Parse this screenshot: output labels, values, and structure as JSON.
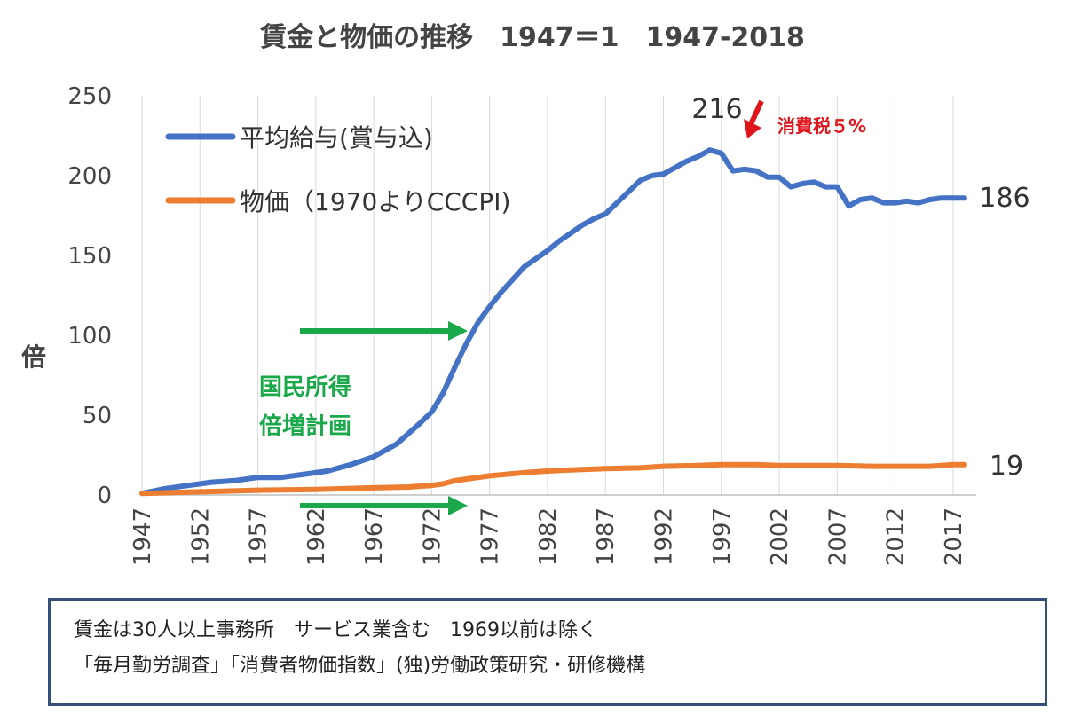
{
  "chart_data": {
    "type": "line",
    "title": "賃金と物価の推移　1947＝1　1947-2018",
    "ylabel": "倍",
    "xlabel": "",
    "ylim": [
      0,
      250
    ],
    "yticks": [
      0,
      50,
      100,
      150,
      200,
      250
    ],
    "xlim": [
      1947,
      2019
    ],
    "xticks": [
      "1947",
      "1952",
      "1957",
      "1962",
      "1967",
      "1972",
      "1977",
      "1982",
      "1987",
      "1992",
      "1997",
      "2002",
      "2007",
      "2012",
      "2017"
    ],
    "grid": "vertical",
    "legend": "top-left",
    "series": [
      {
        "name": "平均給与(賞与込)",
        "color": "#4472c4",
        "x": [
          1947,
          1949,
          1951,
          1953,
          1955,
          1957,
          1959,
          1961,
          1963,
          1965,
          1967,
          1969,
          1971,
          1972,
          1973,
          1974,
          1975,
          1976,
          1977,
          1978,
          1979,
          1980,
          1981,
          1982,
          1983,
          1984,
          1985,
          1986,
          1987,
          1988,
          1989,
          1990,
          1991,
          1992,
          1993,
          1994,
          1995,
          1996,
          1997,
          1998,
          1999,
          2000,
          2001,
          2002,
          2003,
          2004,
          2005,
          2006,
          2007,
          2008,
          2009,
          2010,
          2011,
          2012,
          2013,
          2014,
          2015,
          2016,
          2017,
          2018
        ],
        "values": [
          1,
          4,
          6,
          8,
          9,
          11,
          11,
          13,
          15,
          19,
          24,
          32,
          45,
          52,
          64,
          80,
          95,
          108,
          118,
          127,
          135,
          143,
          148,
          153,
          159,
          164,
          169,
          173,
          176,
          183,
          190,
          197,
          200,
          201,
          205,
          209,
          212,
          216,
          214,
          203,
          204,
          203,
          199,
          199,
          193,
          195,
          196,
          193,
          193,
          181,
          185,
          186,
          183,
          183,
          184,
          183,
          185,
          186,
          186,
          186
        ]
      },
      {
        "name": "物価（1970よりCCCPI)",
        "color": "#ed7d31",
        "x": [
          1947,
          1952,
          1957,
          1962,
          1967,
          1970,
          1972,
          1973,
          1974,
          1975,
          1977,
          1980,
          1982,
          1985,
          1987,
          1990,
          1992,
          1995,
          1997,
          1998,
          2000,
          2002,
          2005,
          2007,
          2010,
          2012,
          2015,
          2017,
          2018
        ],
        "values": [
          1,
          2,
          3,
          3.5,
          4.5,
          5,
          6,
          7,
          9,
          10,
          12,
          14,
          15,
          16,
          16.5,
          17,
          18,
          18.5,
          19,
          19,
          19,
          18.5,
          18.5,
          18.5,
          18,
          18,
          18,
          19,
          19
        ]
      }
    ],
    "annotations": {
      "peak_label": "216",
      "wage_end_label": "186",
      "price_end_label": "19",
      "tax_note": "消費税５%",
      "plan_note_line1": "国民所得",
      "plan_note_line2": "倍増計画"
    }
  },
  "footnote": {
    "line1": "賃金は30人以上事務所　サービス業含む　1969以前は除く",
    "line2": "「毎月勤労調査」「消費者物価指数」(独)労働政策研究・研修機構"
  },
  "colors": {
    "arrow_green": "#1aa84a",
    "arrow_red": "#e0141b",
    "grid": "#d9d9d9",
    "axis": "#bfbfbf"
  }
}
